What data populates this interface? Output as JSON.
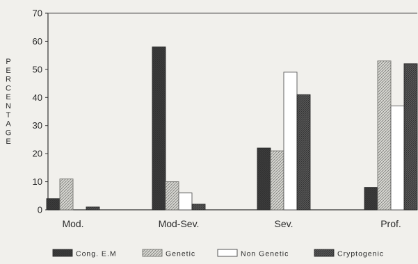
{
  "chart_data": {
    "type": "bar",
    "categories": [
      "Mod.",
      "Mod-Sev.",
      "Sev.",
      "Prof."
    ],
    "series": [
      {
        "name": "Cong. E.M",
        "values": [
          4,
          58,
          22,
          8
        ]
      },
      {
        "name": "Genetic",
        "values": [
          11,
          10,
          21,
          53
        ]
      },
      {
        "name": "Non Genetic",
        "values": [
          0,
          6,
          49,
          37
        ]
      },
      {
        "name": "Cryptogenic",
        "values": [
          1,
          2,
          41,
          52
        ]
      }
    ],
    "ylabel": "PERCENTAGE",
    "xlabel": "",
    "ylim": [
      0,
      70
    ],
    "yticks": [
      0,
      10,
      20,
      30,
      40,
      50,
      60,
      70
    ],
    "legend_position": "bottom",
    "grid": false,
    "colors": {
      "Cong. E.M": "#3c3c3c",
      "Genetic": "#c9c9c4",
      "Non Genetic": "#ffffff",
      "Cryptogenic": "#555555",
      "axis": "#333333",
      "background": "#f1f0ec"
    },
    "legend_labels": [
      "Cong. E.M",
      "Genetic",
      "Non Genetic",
      "Cryptogenic"
    ]
  }
}
